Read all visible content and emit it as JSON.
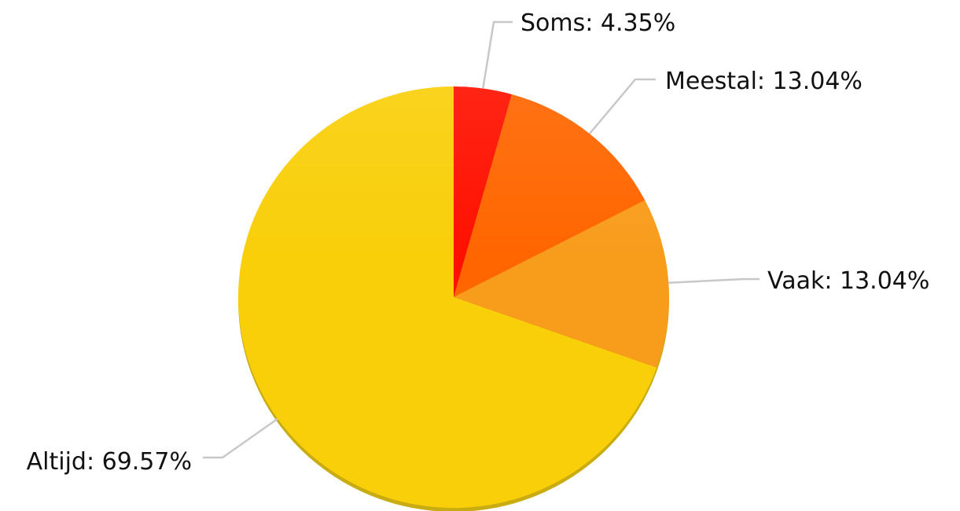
{
  "chart_data": {
    "type": "pie",
    "start": "12 o'clock",
    "direction": "clockwise",
    "legend": "none",
    "slices": [
      {
        "name": "Soms",
        "label": "Soms: 4.35%",
        "value": 4.35,
        "color": "#FF1100"
      },
      {
        "name": "Meestal",
        "label": "Meestal: 13.04%",
        "value": 13.04,
        "color": "#FF6600"
      },
      {
        "name": "Vaak",
        "label": "Vaak: 13.04%",
        "value": 13.04,
        "color": "#F89C1C"
      },
      {
        "name": "Altijd",
        "label": "Altijd: 69.57%",
        "value": 69.57,
        "color": "#F9CF0A"
      }
    ]
  }
}
